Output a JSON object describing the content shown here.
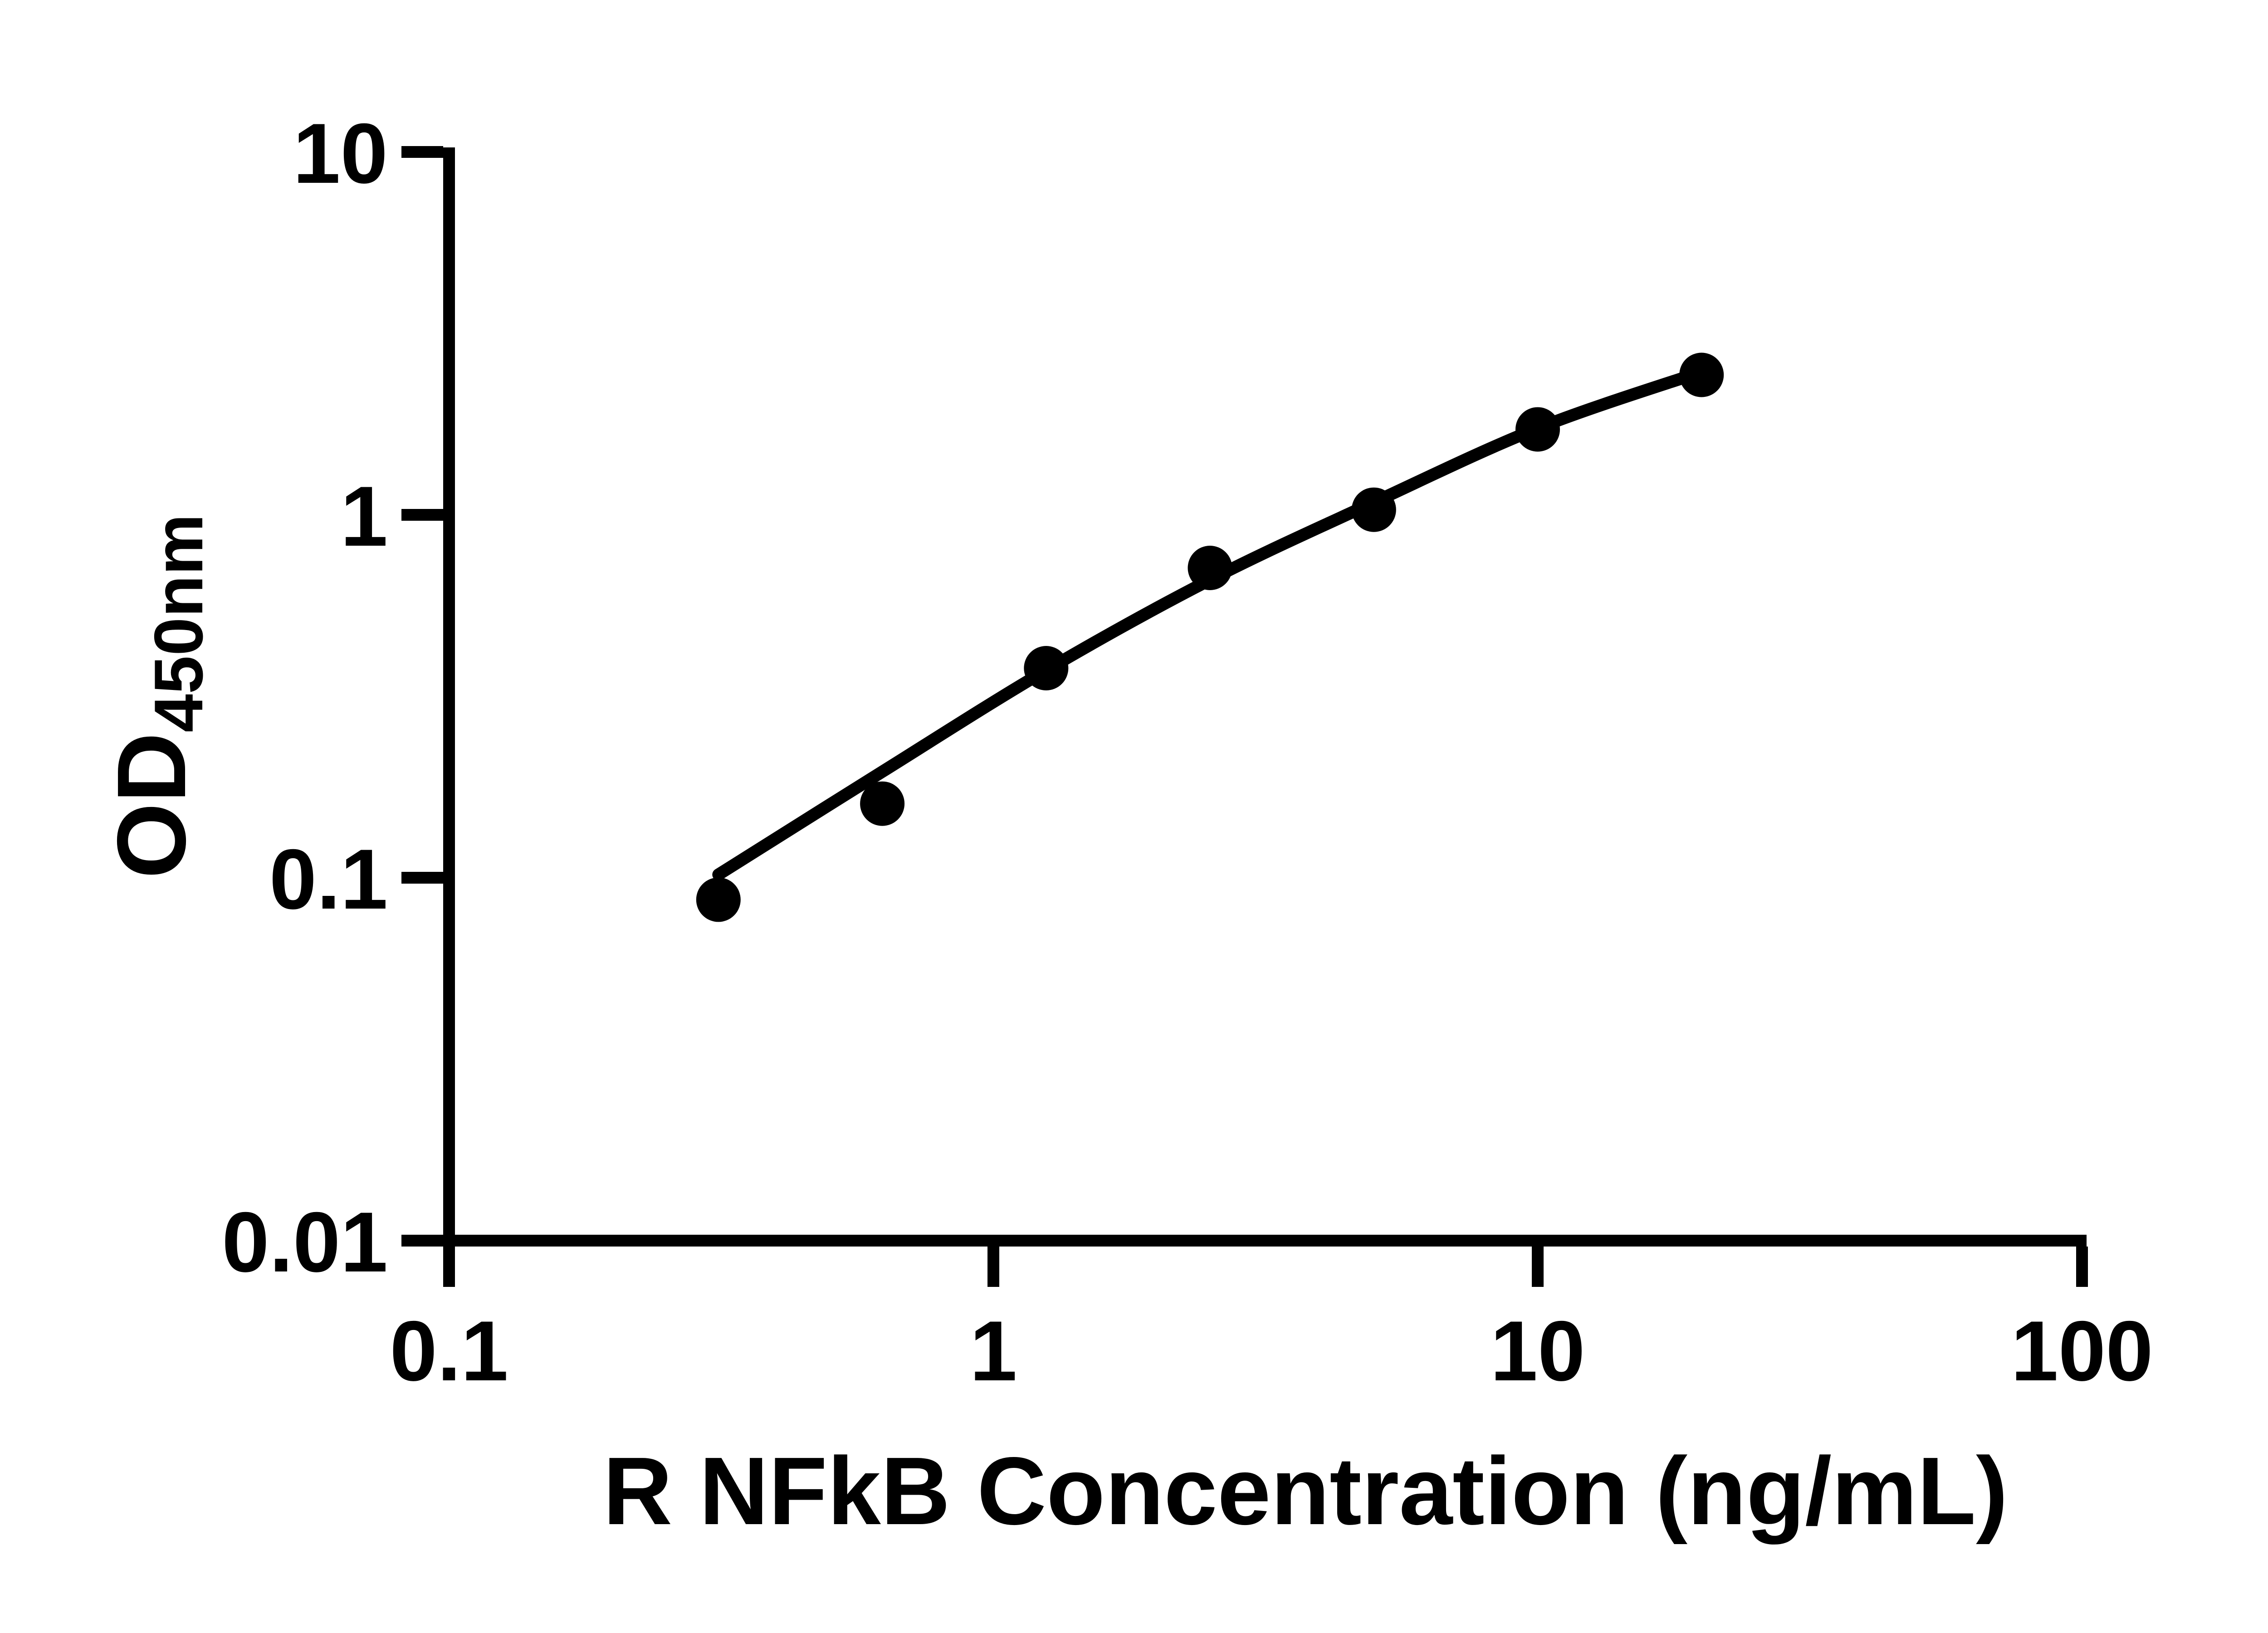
{
  "chart_data": {
    "type": "scatter",
    "title": "",
    "xlabel": "R NFkB Concentration (ng/mL)",
    "ylabel_main": "OD",
    "ylabel_sub": "450nm",
    "x_scale": "log",
    "y_scale": "log",
    "xlim": [
      0.1,
      100
    ],
    "ylim": [
      0.01,
      10
    ],
    "grid": false,
    "legend": "none",
    "colors": {
      "ink": "#000000",
      "background": "#ffffff"
    },
    "x_ticks": [
      {
        "value": 0.1,
        "label": "0.1"
      },
      {
        "value": 1,
        "label": "1"
      },
      {
        "value": 10,
        "label": "10"
      },
      {
        "value": 100,
        "label": "100"
      }
    ],
    "y_ticks": [
      {
        "value": 10,
        "label": "10"
      },
      {
        "value": 1,
        "label": "1"
      },
      {
        "value": 0.1,
        "label": "0.1"
      },
      {
        "value": 0.01,
        "label": "0.01"
      }
    ],
    "series": [
      {
        "name": "standard-curve-points",
        "marker": "filled-circle",
        "marker_radius_px": 49,
        "points": [
          {
            "x": 0.3125,
            "y": 0.087
          },
          {
            "x": 0.625,
            "y": 0.16
          },
          {
            "x": 1.25,
            "y": 0.378
          },
          {
            "x": 2.5,
            "y": 0.714
          },
          {
            "x": 5,
            "y": 1.033
          },
          {
            "x": 10,
            "y": 1.72
          },
          {
            "x": 20,
            "y": 2.43
          }
        ]
      }
    ],
    "fit_curve": [
      {
        "x": 0.3125,
        "y": 0.102
      },
      {
        "x": 0.625,
        "y": 0.196
      },
      {
        "x": 1.25,
        "y": 0.373
      },
      {
        "x": 2.5,
        "y": 0.662
      },
      {
        "x": 5,
        "y": 1.083
      },
      {
        "x": 10,
        "y": 1.732
      },
      {
        "x": 20,
        "y": 2.478
      }
    ]
  }
}
